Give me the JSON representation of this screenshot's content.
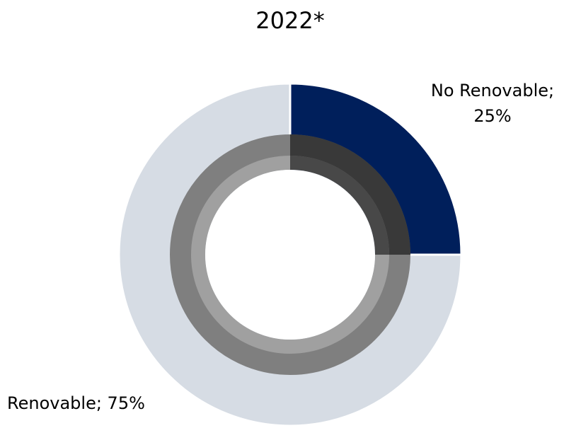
{
  "chart_data": {
    "type": "pie",
    "style": "donut",
    "title": "2022*",
    "slices": [
      {
        "label": "No Renovable",
        "value": 25,
        "display": "25%",
        "color": "#001f5b"
      },
      {
        "label": "Renovable",
        "value": 75,
        "display": "75%",
        "color": "#d6dce4"
      }
    ],
    "colors": {
      "inner_ring_outer": "#7f7f7f",
      "inner_ring_inner": "#a0a0a0",
      "inner_ring_shadow": "#000000",
      "background": "#ffffff",
      "text": "#000000"
    }
  }
}
